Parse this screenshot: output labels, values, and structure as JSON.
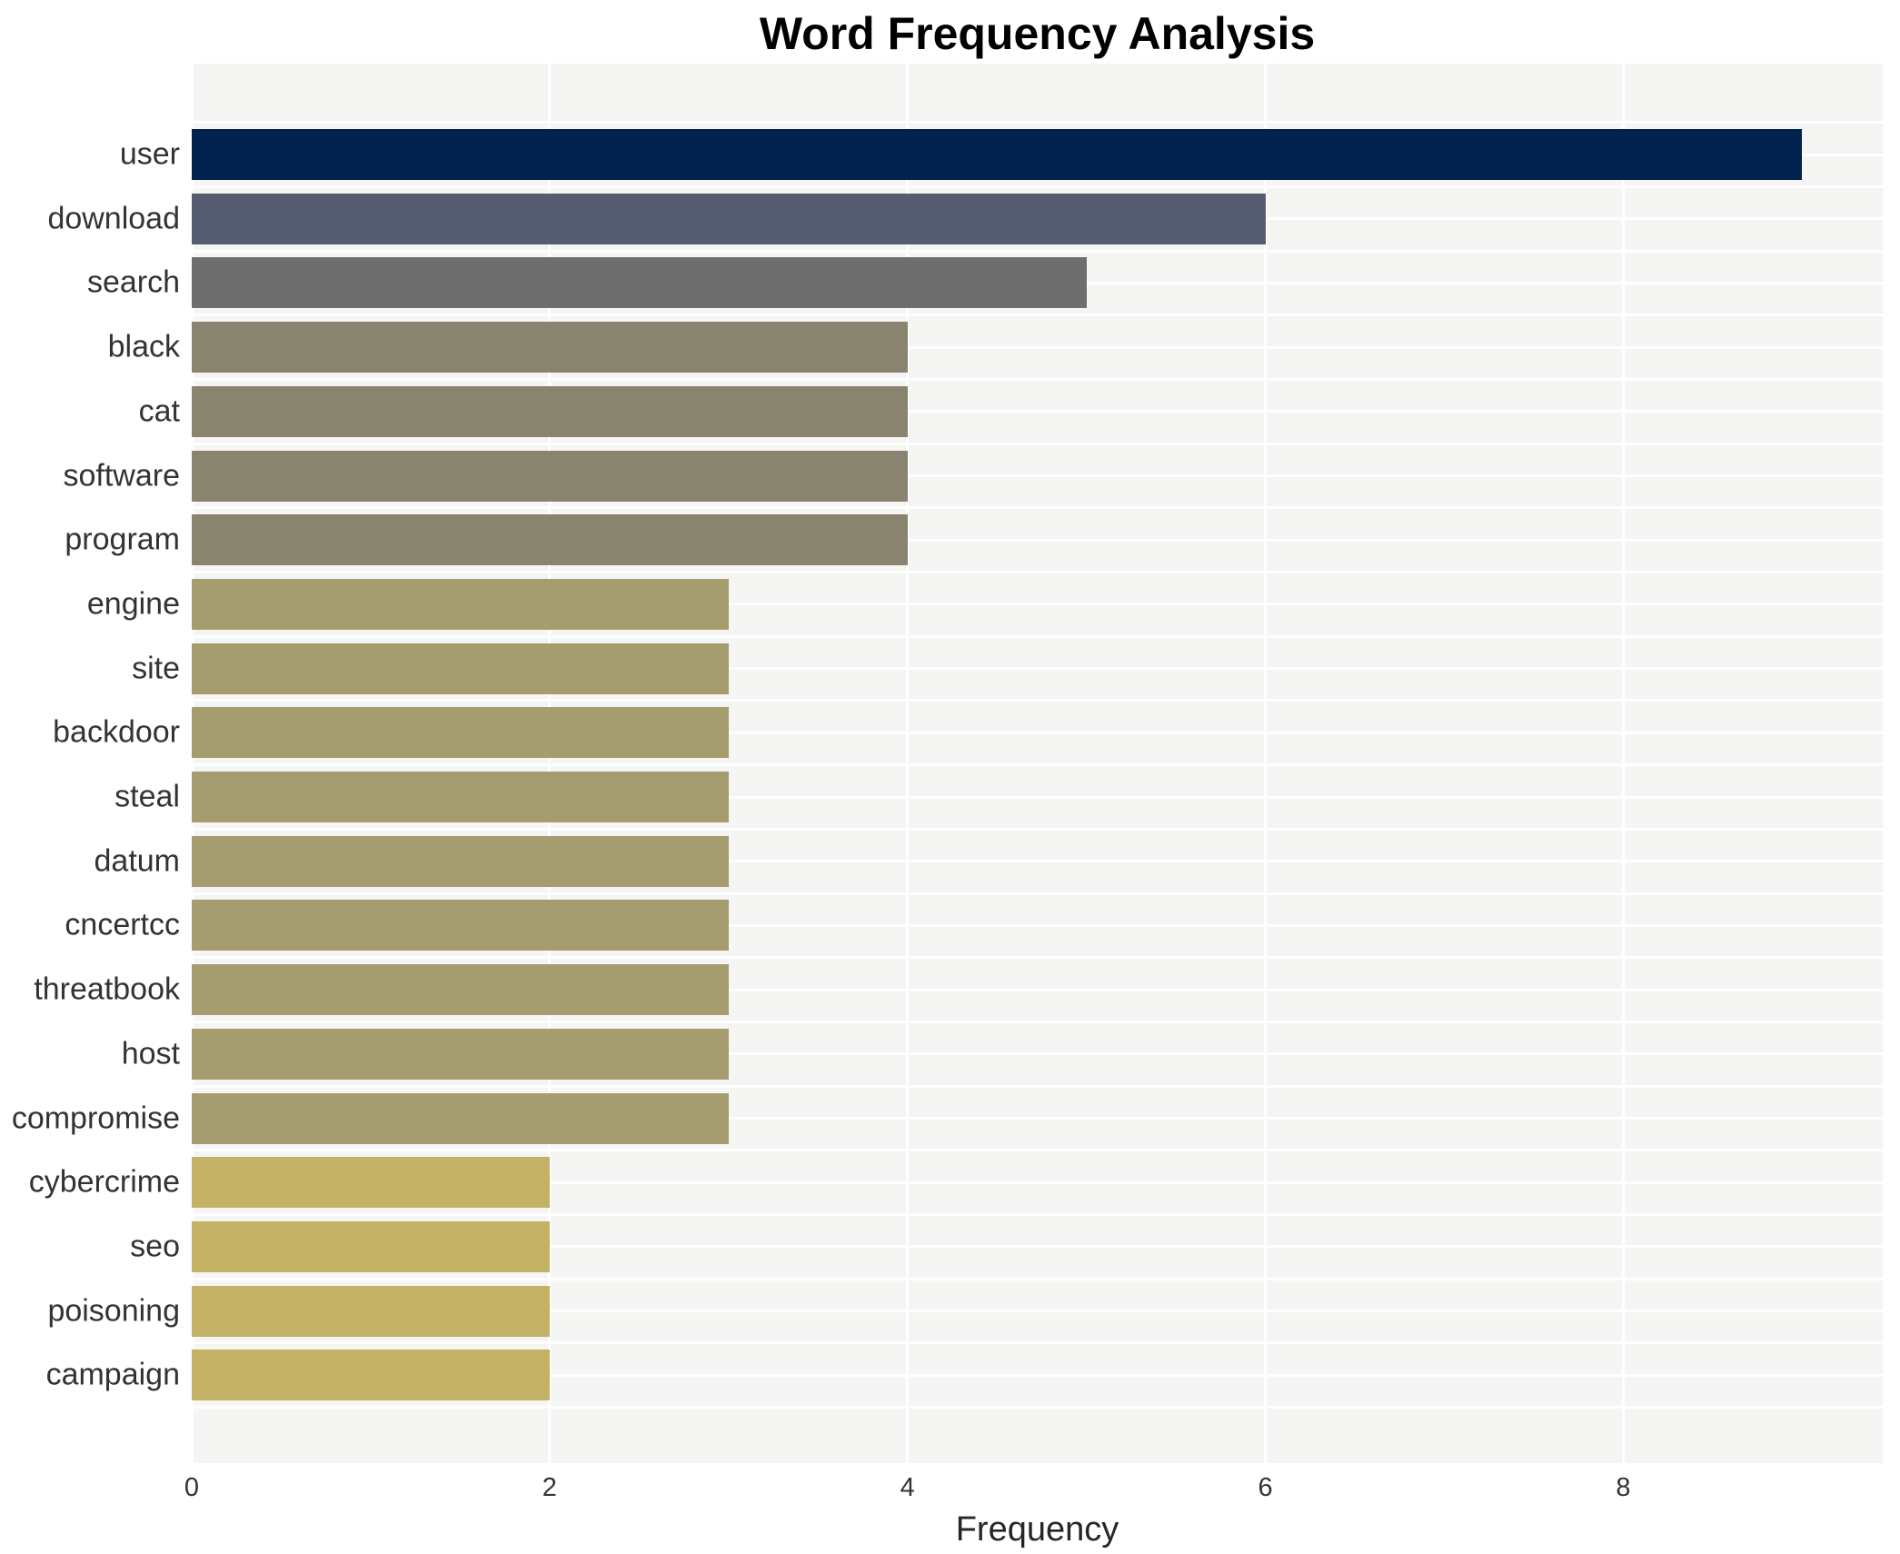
{
  "chart_data": {
    "type": "bar",
    "orientation": "horizontal",
    "title": "Word Frequency Analysis",
    "xlabel": "Frequency",
    "ylabel": "",
    "categories": [
      "user",
      "download",
      "search",
      "black",
      "cat",
      "software",
      "program",
      "engine",
      "site",
      "backdoor",
      "steal",
      "datum",
      "cncertcc",
      "threatbook",
      "host",
      "compromise",
      "cybercrime",
      "seo",
      "poisoning",
      "campaign"
    ],
    "values": [
      9,
      6,
      5,
      4,
      4,
      4,
      4,
      3,
      3,
      3,
      3,
      3,
      3,
      3,
      3,
      3,
      2,
      2,
      2,
      2
    ],
    "bar_colors": [
      "#02214c",
      "#565d70",
      "#6e6e6e",
      "#898470",
      "#898470",
      "#898470",
      "#898470",
      "#a59c6f",
      "#a59c6f",
      "#a59c6f",
      "#a59c6f",
      "#a59c6f",
      "#a59c6f",
      "#a59c6f",
      "#a59c6f",
      "#a59c6f",
      "#c3b165",
      "#c3b165",
      "#c3b165",
      "#c3b165"
    ],
    "xticks": [
      0,
      2,
      4,
      6,
      8
    ],
    "xlim": [
      0,
      9.45
    ],
    "grid": true,
    "legend_position": "none",
    "figure_background": "#ffffff",
    "plot_background": "#f5f5f3",
    "grid_color": "#ffffff",
    "title_color": "#000000",
    "tick_color": "#333333",
    "axis_label_color": "#262626"
  }
}
